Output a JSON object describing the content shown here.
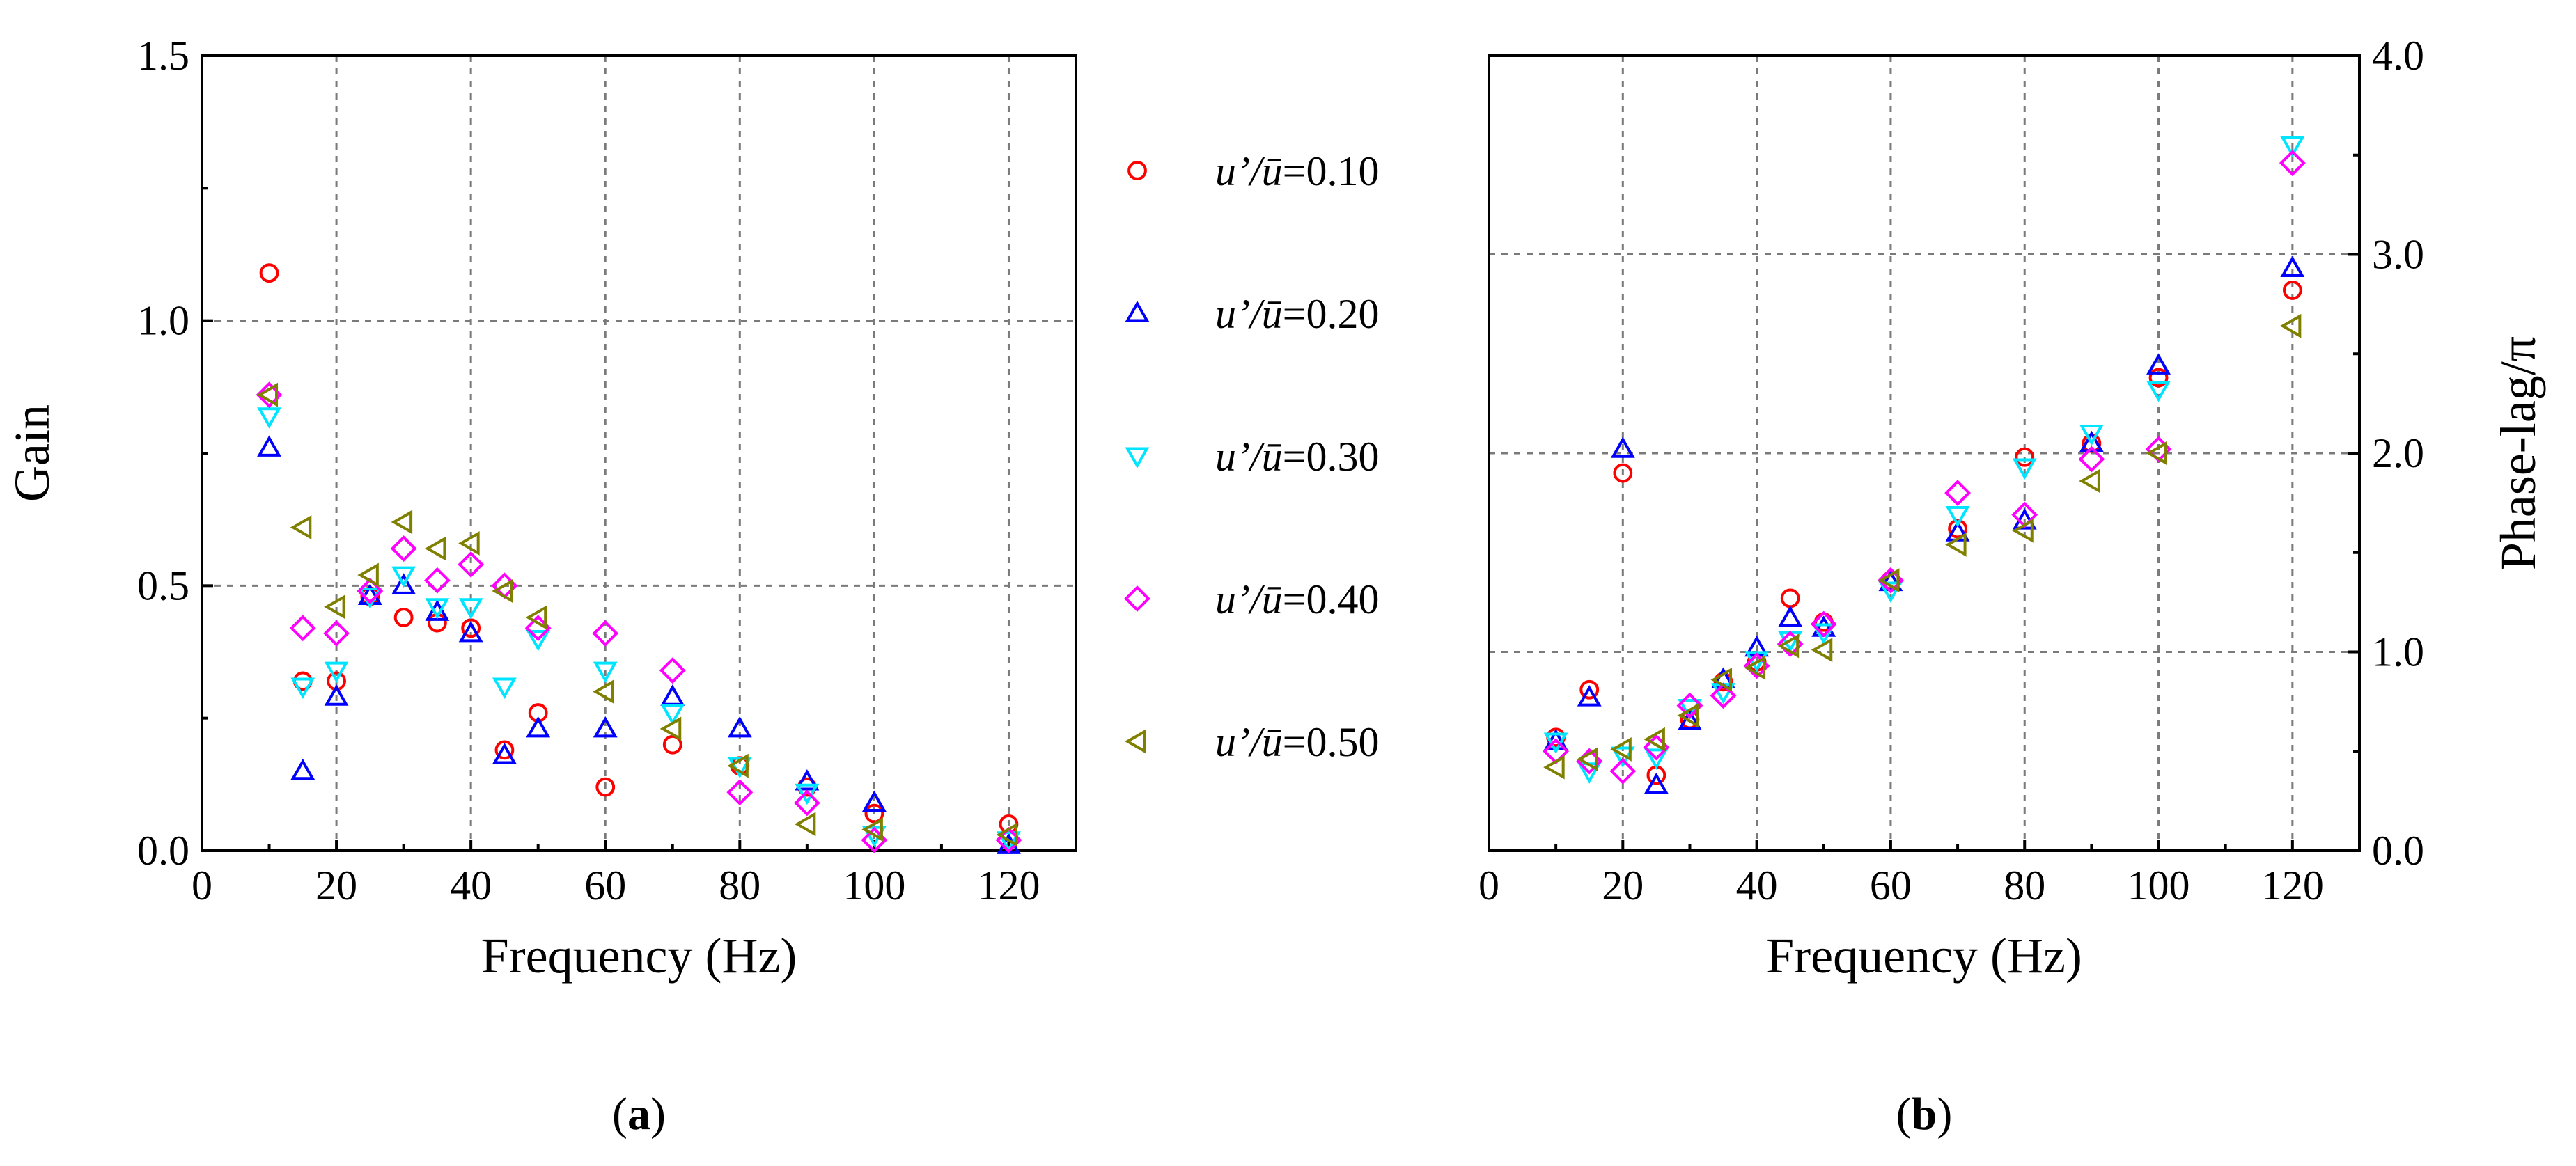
{
  "colors": {
    "series_1": "#ff0000",
    "series_2": "#0000ff",
    "series_3": "#00e5ff",
    "series_4": "#ff00ff",
    "series_5": "#808000"
  },
  "legend": [
    {
      "math": "u’/ū",
      "value": "=0.10",
      "marker": "circle",
      "color": "#ff0000"
    },
    {
      "math": "u’/ū",
      "value": "=0.20",
      "marker": "triangle-up",
      "color": "#0000ff"
    },
    {
      "math": "u’/ū",
      "value": "=0.30",
      "marker": "triangle-down",
      "color": "#00e5ff"
    },
    {
      "math": "u’/ū",
      "value": "=0.40",
      "marker": "diamond",
      "color": "#ff00ff"
    },
    {
      "math": "u’/ū",
      "value": "=0.50",
      "marker": "triangle-left",
      "color": "#808000"
    }
  ],
  "chart_data": [
    {
      "type": "scatter",
      "panel_label": "(a)",
      "xlabel": "Frequency (Hz)",
      "ylabel": "Gain",
      "xlim": [
        0,
        130
      ],
      "ylim": [
        0,
        1.5
      ],
      "xticks": [
        "0",
        "20",
        "40",
        "60",
        "80",
        "100",
        "120"
      ],
      "yticks": [
        "0.0",
        "0.5",
        "1.0",
        "1.5"
      ],
      "grid": true,
      "x": [
        10,
        15,
        20,
        25,
        30,
        35,
        40,
        45,
        50,
        60,
        70,
        80,
        90,
        100,
        120
      ],
      "series": [
        {
          "name": "u’/ū=0.10",
          "values": [
            1.09,
            0.32,
            0.32,
            0.48,
            0.44,
            0.43,
            0.42,
            0.19,
            0.26,
            0.12,
            0.2,
            0.16,
            0.12,
            0.07,
            0.05
          ]
        },
        {
          "name": "u’/ū=0.20",
          "values": [
            0.76,
            0.15,
            0.29,
            0.48,
            0.5,
            0.45,
            0.41,
            0.18,
            0.23,
            0.23,
            0.29,
            0.23,
            0.13,
            0.09,
            0.01
          ]
        },
        {
          "name": "u’/ū=0.30",
          "values": [
            0.82,
            0.31,
            0.34,
            0.48,
            0.52,
            0.46,
            0.46,
            0.31,
            0.4,
            0.34,
            0.26,
            0.16,
            0.11,
            0.03,
            0.02
          ]
        },
        {
          "name": "u’/ū=0.40",
          "values": [
            0.86,
            0.42,
            0.41,
            0.49,
            0.57,
            0.51,
            0.54,
            0.5,
            0.42,
            0.41,
            0.34,
            0.11,
            0.09,
            0.02,
            0.02
          ]
        },
        {
          "name": "u’/ū=0.50",
          "values": [
            0.86,
            0.61,
            0.46,
            0.52,
            0.62,
            0.57,
            0.58,
            0.49,
            0.44,
            0.3,
            0.23,
            0.16,
            0.05,
            0.04,
            0.03
          ]
        }
      ]
    },
    {
      "type": "scatter",
      "panel_label": "(b)",
      "xlabel": "Frequency (Hz)",
      "ylabel": "Phase-lag/π",
      "xlim": [
        0,
        130
      ],
      "ylim": [
        0,
        4.0
      ],
      "xticks": [
        "0",
        "20",
        "40",
        "60",
        "80",
        "100",
        "120"
      ],
      "yticks": [
        "0.0",
        "1.0",
        "2.0",
        "3.0",
        "4.0"
      ],
      "grid": true,
      "x": [
        10,
        15,
        20,
        25,
        30,
        35,
        40,
        45,
        50,
        60,
        70,
        80,
        90,
        100,
        120
      ],
      "series": [
        {
          "name": "u’/ū=0.10",
          "values": [
            0.57,
            0.81,
            1.9,
            0.38,
            0.66,
            0.85,
            0.95,
            1.27,
            1.15,
            1.36,
            1.62,
            1.98,
            2.05,
            2.38,
            2.82
          ]
        },
        {
          "name": "u’/ū=0.20",
          "values": [
            0.55,
            0.77,
            2.02,
            0.33,
            0.65,
            0.86,
            1.02,
            1.17,
            1.12,
            1.35,
            1.6,
            1.66,
            2.05,
            2.44,
            2.93
          ]
        },
        {
          "name": "u’/ū=0.30",
          "values": [
            0.55,
            0.4,
            0.48,
            0.47,
            0.72,
            0.8,
            0.96,
            1.06,
            1.1,
            1.31,
            1.69,
            1.93,
            2.1,
            2.32,
            3.55
          ]
        },
        {
          "name": "u’/ū=0.40",
          "values": [
            0.5,
            0.45,
            0.4,
            0.52,
            0.73,
            0.78,
            0.93,
            1.04,
            1.14,
            1.36,
            1.8,
            1.69,
            1.97,
            2.02,
            3.46
          ]
        },
        {
          "name": "u’/ū=0.50",
          "values": [
            0.42,
            0.46,
            0.51,
            0.56,
            0.68,
            0.86,
            0.92,
            1.03,
            1.01,
            1.36,
            1.54,
            1.61,
            1.86,
            2.0,
            2.64
          ]
        }
      ]
    }
  ]
}
